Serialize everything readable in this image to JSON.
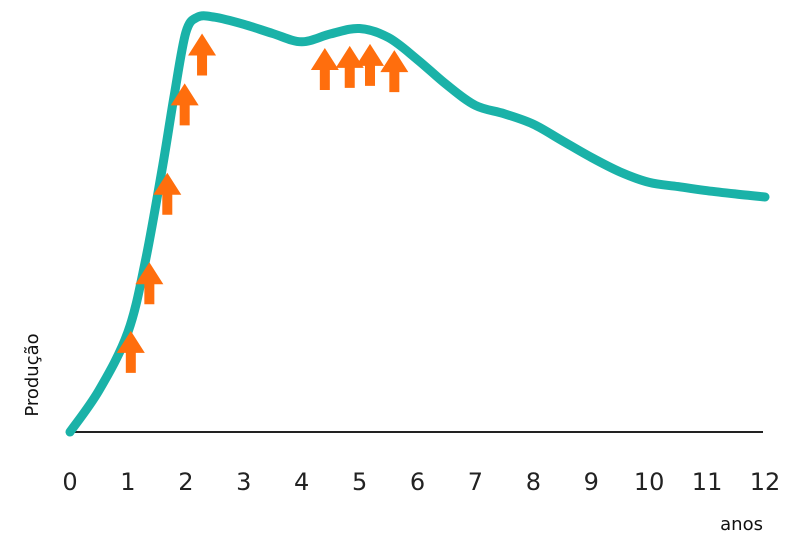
{
  "chart_data": {
    "type": "line",
    "xlabel": "anos",
    "ylabel": "Produção",
    "xlim": [
      0,
      12
    ],
    "ylim": [
      0,
      1
    ],
    "x_ticks": [
      "0",
      "1",
      "2",
      "3",
      "4",
      "5",
      "6",
      "7",
      "8",
      "9",
      "10",
      "11",
      "12"
    ],
    "grid": false,
    "series": [
      {
        "color": "#1ab2a8",
        "x": [
          0,
          0.5,
          1,
          1.3,
          1.6,
          1.8,
          2.0,
          2.2,
          2.5,
          3,
          3.5,
          4,
          4.5,
          5,
          5.5,
          6,
          6.5,
          7,
          7.5,
          8,
          8.5,
          9,
          9.5,
          10,
          10.5,
          11,
          11.5,
          12
        ],
        "y": [
          0,
          0.1,
          0.24,
          0.41,
          0.64,
          0.81,
          0.96,
          0.997,
          0.997,
          0.98,
          0.958,
          0.938,
          0.957,
          0.97,
          0.948,
          0.895,
          0.835,
          0.785,
          0.765,
          0.74,
          0.7,
          0.66,
          0.625,
          0.6,
          0.59,
          0.58,
          0.572,
          0.565
        ]
      }
    ],
    "markers": {
      "type": "up-arrow",
      "color": "#ff6e0d",
      "x": [
        1.05,
        1.37,
        1.68,
        1.98,
        2.28,
        4.4,
        4.83,
        5.18,
        5.6
      ],
      "y": [
        0.195,
        0.36,
        0.575,
        0.79,
        0.91,
        0.875,
        0.88,
        0.885,
        0.87
      ]
    }
  }
}
